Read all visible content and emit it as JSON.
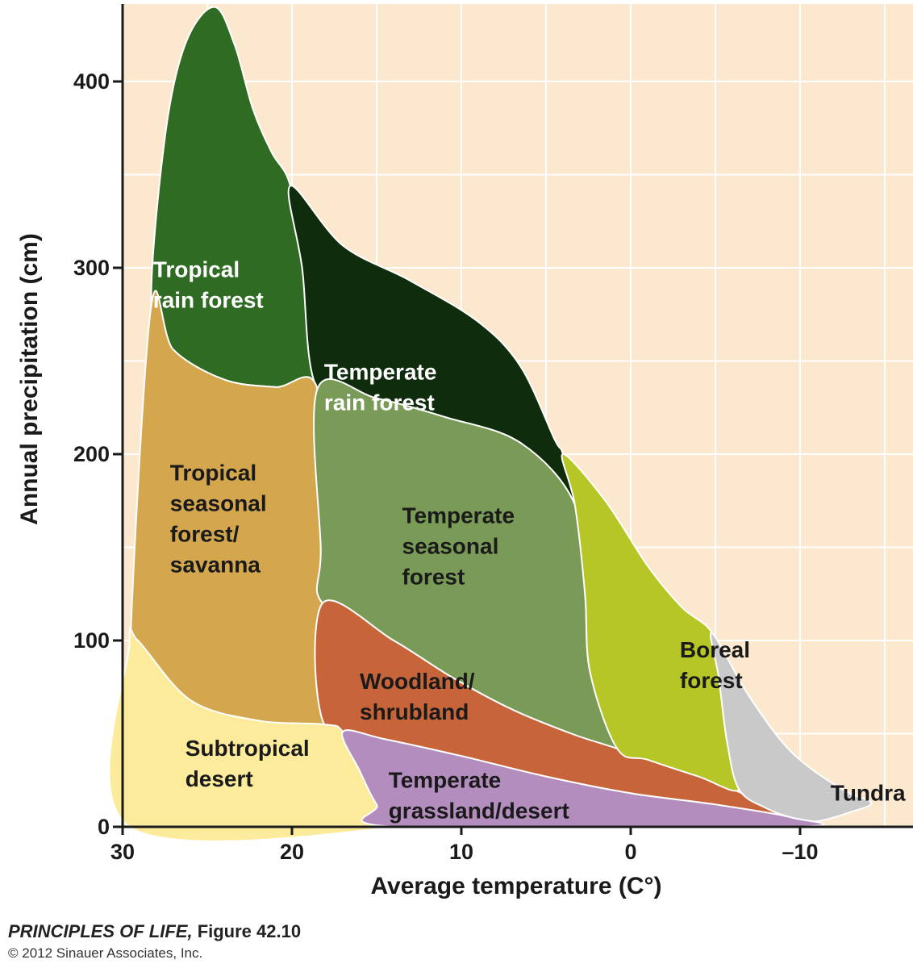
{
  "chart_data": {
    "type": "area",
    "xlabel": "Average temperature (C°)",
    "ylabel": "Annual precipitation (cm)",
    "xlim": [
      30,
      -15
    ],
    "ylim": [
      0,
      440
    ],
    "x_ticks": [
      30,
      20,
      10,
      0,
      -10
    ],
    "x_tick_labels": [
      "30",
      "20",
      "10",
      "0",
      "–10"
    ],
    "y_ticks": [
      0,
      100,
      200,
      300,
      400
    ],
    "y_tick_labels": [
      "0",
      "100",
      "200",
      "300",
      "400"
    ],
    "grid": true,
    "biomes": [
      {
        "id": "tropical-rain-forest",
        "label_lines": [
          "Tropical",
          "rain forest"
        ],
        "label_at": [
          28.2,
          295
        ],
        "label_color": "#ffffff",
        "color": "#2f6b22",
        "boundary": [
          [
            28.3,
            280
          ],
          [
            27.5,
            370
          ],
          [
            26.3,
            420
          ],
          [
            24.6,
            440
          ],
          [
            23.4,
            420
          ],
          [
            22.3,
            385
          ],
          [
            21.2,
            362
          ],
          [
            20.1,
            344
          ],
          [
            19.4,
            300
          ],
          [
            18.5,
            235
          ],
          [
            21,
            236
          ],
          [
            24,
            240
          ],
          [
            27,
            256
          ],
          [
            28.3,
            280
          ]
        ]
      },
      {
        "id": "temperate-rain-forest",
        "label_lines": [
          "Temperate",
          "rain forest"
        ],
        "label_at": [
          18.1,
          240
        ],
        "label_color": "#ffffff",
        "color": "#0f2d0d",
        "boundary": [
          [
            20.1,
            344
          ],
          [
            17,
            312
          ],
          [
            13,
            293
          ],
          [
            9,
            271
          ],
          [
            6.5,
            247
          ],
          [
            4.5,
            208
          ],
          [
            4,
            200
          ],
          [
            3.3,
            173
          ],
          [
            6.5,
            206
          ],
          [
            11,
            220
          ],
          [
            15,
            230
          ],
          [
            18.5,
            235
          ],
          [
            19.4,
            300
          ],
          [
            20.1,
            344
          ]
        ]
      },
      {
        "id": "tropical-seasonal-forest-savanna",
        "label_lines": [
          "Tropical",
          "seasonal",
          "forest/",
          "savanna"
        ],
        "label_at": [
          27.2,
          186
        ],
        "label_color": "#1a1a1a",
        "color": "#d4a74e",
        "boundary": [
          [
            28.3,
            280
          ],
          [
            27,
            256
          ],
          [
            24,
            240
          ],
          [
            21,
            236
          ],
          [
            18.5,
            235
          ],
          [
            18.3,
            150
          ],
          [
            18.1,
            55
          ],
          [
            22,
            57
          ],
          [
            26,
            68
          ],
          [
            29.1,
            100
          ],
          [
            29.5,
            108
          ],
          [
            28.3,
            280
          ]
        ]
      },
      {
        "id": "temperate-seasonal-forest",
        "label_lines": [
          "Temperate",
          "seasonal",
          "forest"
        ],
        "label_at": [
          13.5,
          163
        ],
        "label_color": "#1a1a1a",
        "color": "#7a9a57",
        "boundary": [
          [
            18.5,
            235
          ],
          [
            15,
            230
          ],
          [
            11,
            220
          ],
          [
            6.5,
            206
          ],
          [
            3.3,
            173
          ],
          [
            2.7,
            125
          ],
          [
            2.4,
            83
          ],
          [
            0.8,
            42
          ],
          [
            3.5,
            50
          ],
          [
            7,
            63
          ],
          [
            10.5,
            80
          ],
          [
            14,
            100
          ],
          [
            18.2,
            120
          ],
          [
            18.3,
            150
          ],
          [
            18.5,
            235
          ]
        ]
      },
      {
        "id": "woodland-shrubland",
        "label_lines": [
          "Woodland/",
          "shrubland"
        ],
        "label_at": [
          16,
          74
        ],
        "label_color": "#1a1a1a",
        "color": "#c8643a",
        "boundary": [
          [
            18.2,
            120
          ],
          [
            14,
            100
          ],
          [
            10.5,
            80
          ],
          [
            7,
            63
          ],
          [
            3.5,
            50
          ],
          [
            0.8,
            42
          ],
          [
            -2,
            33
          ],
          [
            -5,
            24
          ],
          [
            -9,
            8
          ],
          [
            -9.5,
            5
          ],
          [
            -5,
            12
          ],
          [
            0,
            18
          ],
          [
            5,
            27
          ],
          [
            10,
            38
          ],
          [
            14.5,
            47
          ],
          [
            18.1,
            55
          ],
          [
            18.2,
            120
          ]
        ]
      },
      {
        "id": "boreal-forest",
        "label_lines": [
          "Boreal",
          "forest"
        ],
        "label_at": [
          -2.9,
          91
        ],
        "label_color": "#1a1a1a",
        "color": "#b5c626",
        "boundary": [
          [
            4,
            200
          ],
          [
            1.5,
            175
          ],
          [
            -1,
            140
          ],
          [
            -3,
            118
          ],
          [
            -4.8,
            104
          ],
          [
            -5.2,
            80
          ],
          [
            -5.7,
            45
          ],
          [
            -6.4,
            20
          ],
          [
            -4,
            27
          ],
          [
            -1,
            36
          ],
          [
            0.8,
            42
          ],
          [
            2.4,
            83
          ],
          [
            2.7,
            125
          ],
          [
            3.3,
            173
          ],
          [
            4,
            200
          ]
        ]
      },
      {
        "id": "tundra",
        "label_lines": [
          "Tundra"
        ],
        "label_at": [
          -11.8,
          14
        ],
        "label_color": "#1a1a1a",
        "color": "#c9c9c9",
        "boundary": [
          [
            -4.8,
            104
          ],
          [
            -7,
            70
          ],
          [
            -9.5,
            40
          ],
          [
            -12.5,
            20
          ],
          [
            -14.2,
            13
          ],
          [
            -13,
            8
          ],
          [
            -11,
            3
          ],
          [
            -9.5,
            5
          ],
          [
            -8,
            10
          ],
          [
            -6.4,
            20
          ],
          [
            -5.7,
            45
          ],
          [
            -5.2,
            80
          ],
          [
            -4.8,
            104
          ]
        ]
      },
      {
        "id": "subtropical-desert",
        "label_lines": [
          "Subtropical",
          "desert"
        ],
        "label_at": [
          26.3,
          38
        ],
        "label_color": "#1a1a1a",
        "color": "#fdeb9c",
        "boundary": [
          [
            29.6,
            98
          ],
          [
            29.1,
            100
          ],
          [
            26,
            68
          ],
          [
            22,
            57
          ],
          [
            18.1,
            55
          ],
          [
            17,
            51
          ],
          [
            16,
            30
          ],
          [
            15,
            12
          ],
          [
            13.8,
            0
          ],
          [
            29.6,
            0
          ],
          [
            29.6,
            98
          ]
        ]
      },
      {
        "id": "temperate-grassland-desert",
        "label_lines": [
          "Temperate",
          "grassland/desert"
        ],
        "label_at": [
          14.3,
          21
        ],
        "label_color": "#1a1a1a",
        "color": "#b28dbd",
        "boundary": [
          [
            17,
            51
          ],
          [
            14.5,
            47
          ],
          [
            10,
            38
          ],
          [
            5,
            27
          ],
          [
            0,
            18
          ],
          [
            -5,
            12
          ],
          [
            -9.5,
            5
          ],
          [
            -9.5,
            0
          ],
          [
            13.8,
            0
          ],
          [
            15,
            12
          ],
          [
            16,
            30
          ],
          [
            17,
            51
          ]
        ]
      }
    ]
  },
  "caption": {
    "book": "PRINCIPLES OF LIFE,",
    "figure": " Figure 42.10",
    "copyright": "© 2012 Sinauer Associates, Inc."
  }
}
